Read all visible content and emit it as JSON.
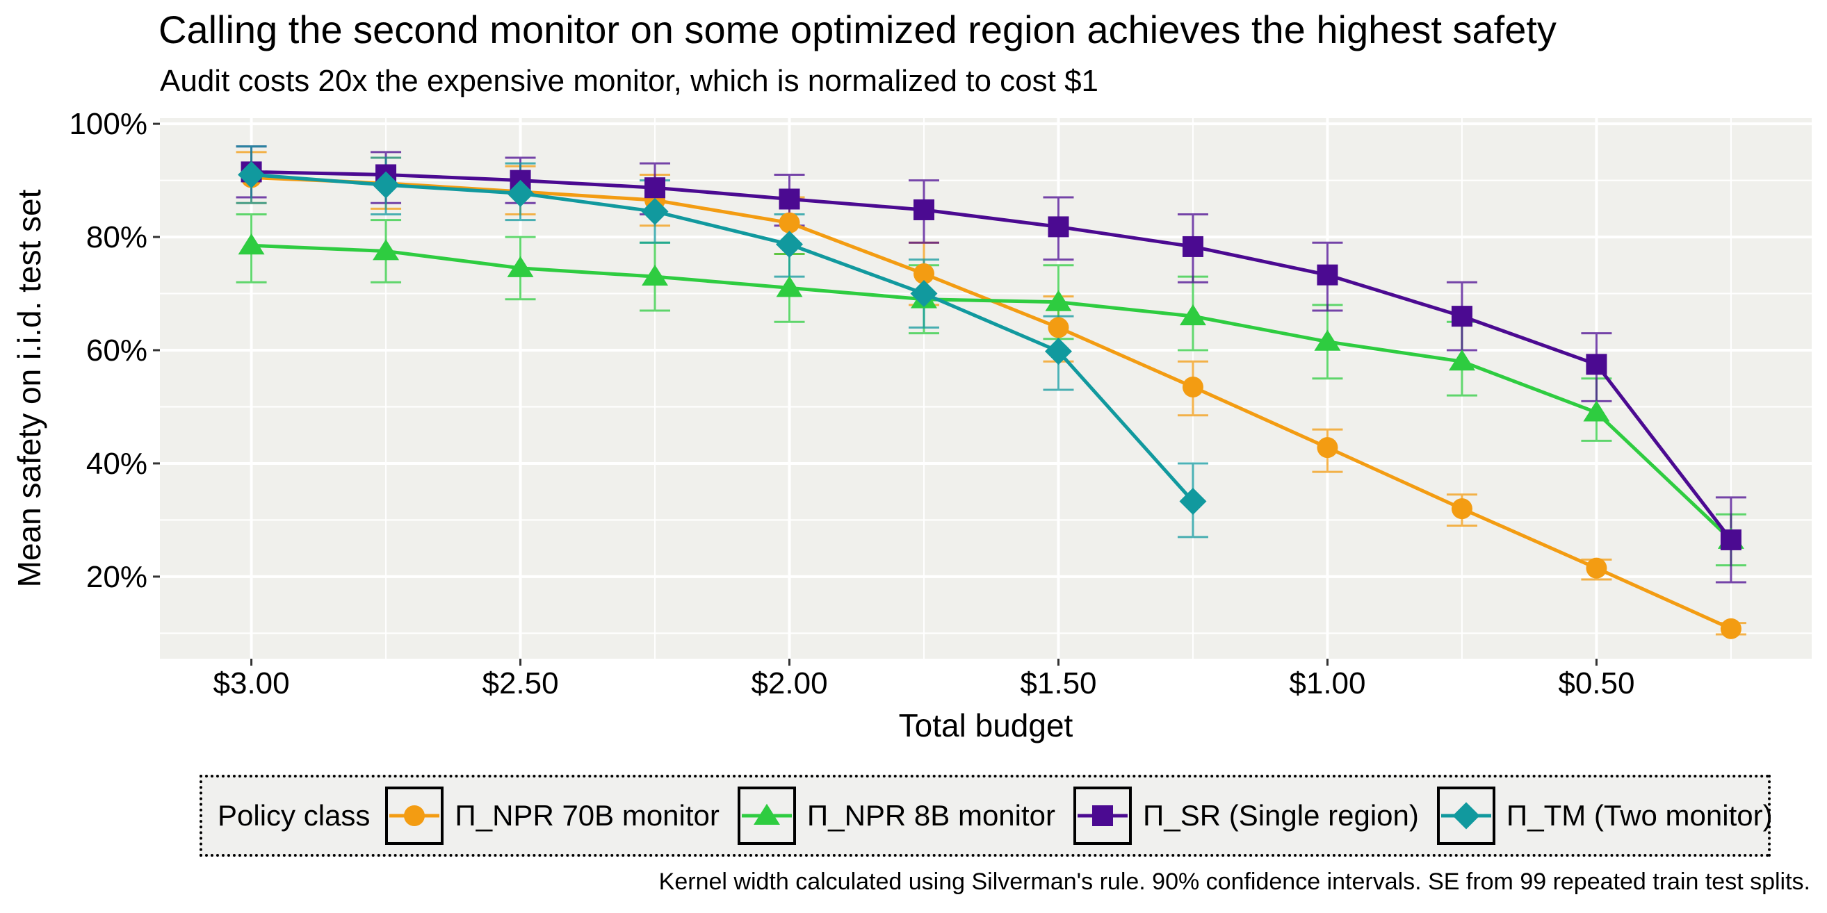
{
  "title": "Calling the second monitor on some optimized region achieves the highest safety",
  "subtitle": "Audit costs 20x the expensive monitor, which is normalized to cost $1",
  "caption": "Kernel width calculated using Silverman's rule. 90% confidence intervals. SE from 99 repeated train test splits.",
  "legend": {
    "title": "Policy class",
    "position": "bottom",
    "items": [
      {
        "label": "Π_NPR 70B monitor",
        "color": "#f39c12",
        "shape": "circle"
      },
      {
        "label": "Π_NPR 8B monitor",
        "color": "#2ecc40",
        "shape": "triangle"
      },
      {
        "label": "Π_SR (Single region)",
        "color": "#4b0a91",
        "shape": "square"
      },
      {
        "label": "Π_TM (Two monitor)",
        "color": "#11999e",
        "shape": "diamond"
      }
    ]
  },
  "chart_data": {
    "type": "line",
    "title": "Calling the second monitor on some optimized region achieves the highest safety",
    "subtitle": "Audit costs 20x the expensive monitor, which is normalized to cost $1",
    "xlabel": "Total budget",
    "ylabel": "Mean safety on i.i.d. test set",
    "x_reversed": true,
    "xlim": [
      0.1,
      3.17
    ],
    "ylim": [
      5.5,
      101
    ],
    "x_ticks": [
      3.0,
      2.5,
      2.0,
      1.5,
      1.0,
      0.5
    ],
    "x_tick_labels": [
      "$3.00",
      "$2.50",
      "$2.00",
      "$1.50",
      "$1.00",
      "$0.50"
    ],
    "y_ticks": [
      20,
      40,
      60,
      80,
      100
    ],
    "y_tick_labels": [
      "20%",
      "40%",
      "60%",
      "80%",
      "100%"
    ],
    "grid": true,
    "series": [
      {
        "name": "Π_NPR 70B monitor",
        "color": "#f39c12",
        "marker": "circle",
        "x": [
          3.0,
          2.75,
          2.5,
          2.25,
          2.0,
          1.75,
          1.5,
          1.25,
          1.0,
          0.75,
          0.5,
          0.25
        ],
        "y": [
          90.5,
          89.5,
          88,
          86.5,
          82.5,
          73.5,
          64,
          53.5,
          42.8,
          32,
          21.5,
          10.8
        ],
        "lo": [
          86,
          85,
          84,
          82,
          77,
          68,
          58,
          48.5,
          38.5,
          29,
          19.5,
          9.8
        ],
        "hi": [
          95,
          94,
          92.5,
          91,
          87,
          79,
          69.5,
          58,
          46,
          34.5,
          23,
          11.8
        ]
      },
      {
        "name": "Π_NPR 8B monitor",
        "color": "#2ecc40",
        "marker": "triangle",
        "x": [
          3.0,
          2.75,
          2.5,
          2.25,
          2.0,
          1.75,
          1.5,
          1.25,
          1.0,
          0.75,
          0.5,
          0.25
        ],
        "y": [
          78.5,
          77.5,
          74.5,
          73,
          71,
          69,
          68.5,
          66,
          61.5,
          58,
          49,
          26.5
        ],
        "lo": [
          72,
          72,
          69,
          67,
          65,
          63,
          62,
          60,
          55,
          52,
          44,
          22
        ],
        "hi": [
          84,
          83,
          80,
          79,
          77,
          75,
          75,
          73,
          68,
          65,
          55,
          31
        ]
      },
      {
        "name": "Π_SR (Single region)",
        "color": "#4b0a91",
        "marker": "square",
        "x": [
          3.0,
          2.75,
          2.5,
          2.25,
          2.0,
          1.75,
          1.5,
          1.25,
          1.0,
          0.75,
          0.5,
          0.25
        ],
        "y": [
          91.5,
          91,
          90,
          88.7,
          86.7,
          84.8,
          81.8,
          78.3,
          73.3,
          66,
          57.5,
          26.5
        ],
        "lo": [
          87,
          86,
          86,
          84,
          82,
          79,
          76,
          72,
          67,
          60,
          51,
          19
        ],
        "hi": [
          96,
          95,
          94,
          93,
          91,
          90,
          87,
          84,
          79,
          72,
          63,
          34
        ]
      },
      {
        "name": "Π_TM (Two monitor)",
        "color": "#11999e",
        "marker": "diamond",
        "x": [
          3.0,
          2.75,
          2.5,
          2.25,
          2.0,
          1.75,
          1.5,
          1.25
        ],
        "y": [
          91,
          89.2,
          87.7,
          84.5,
          78.7,
          70,
          59.8,
          33.3
        ],
        "lo": [
          86,
          84,
          83,
          79,
          73,
          64,
          53,
          27
        ],
        "hi": [
          96,
          94,
          93,
          90,
          84,
          76,
          66,
          40
        ]
      }
    ]
  }
}
